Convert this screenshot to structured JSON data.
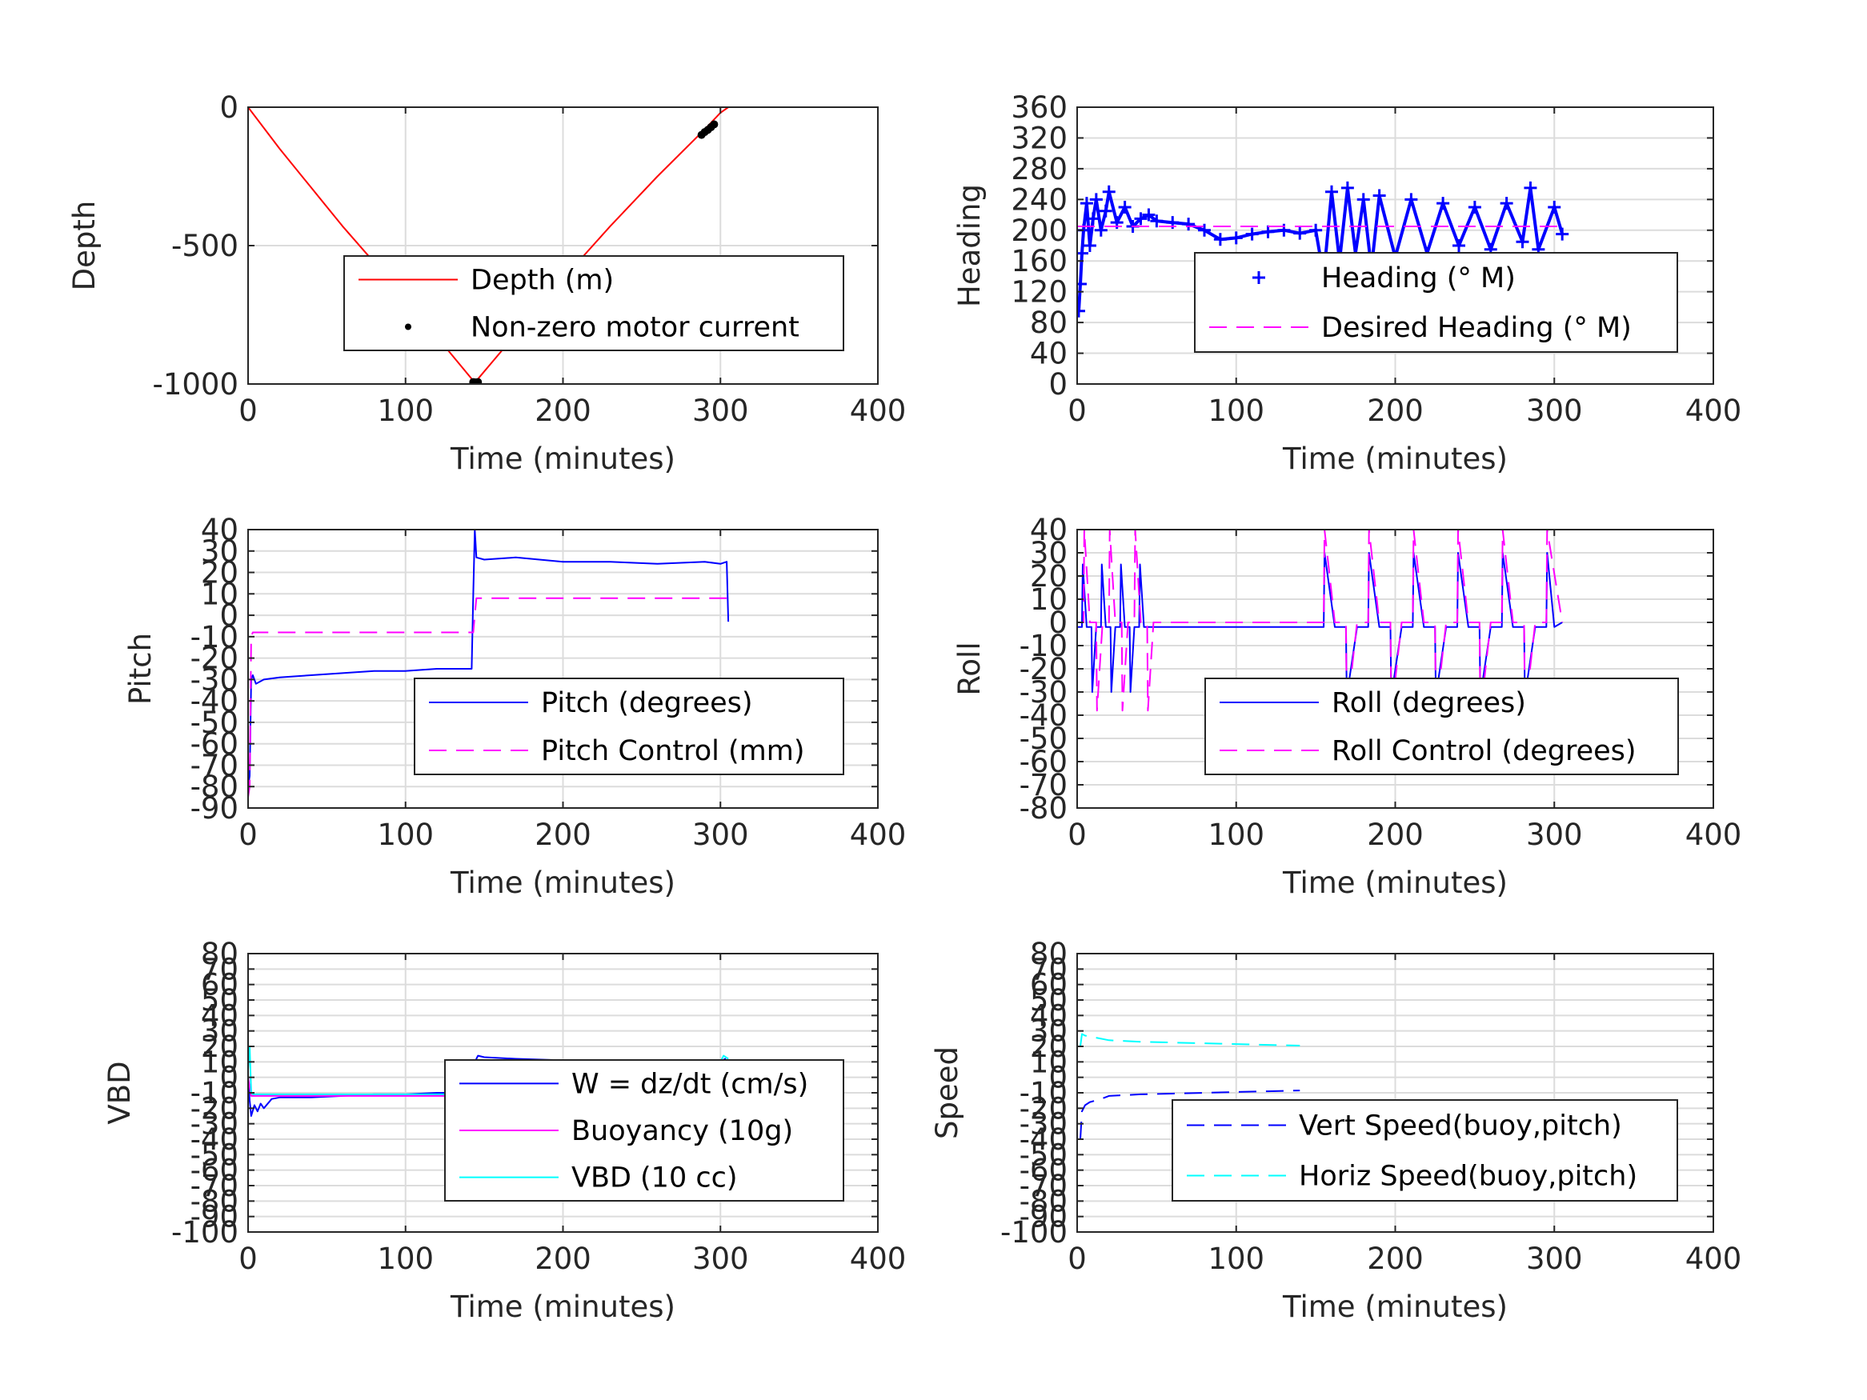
{
  "chart_data": [
    {
      "type": "line",
      "ylabel": "Depth",
      "xlabel": "Time (minutes)",
      "xlim": [
        0,
        400
      ],
      "ylim": [
        -1000,
        0
      ],
      "xticks": [
        "0",
        "100",
        "200",
        "300",
        "400"
      ],
      "yticks": [
        "0",
        "-500",
        "-1000"
      ],
      "ytick_values": [
        0,
        -500,
        -1000
      ],
      "grid": true,
      "legend_position": "center-right",
      "series": [
        {
          "name": "Depth (m)",
          "color": "#ff0000",
          "style": "solid",
          "x": [
            0,
            20,
            40,
            60,
            80,
            100,
            120,
            144,
            170,
            200,
            230,
            260,
            290,
            300,
            305
          ],
          "y": [
            0,
            -150,
            -290,
            -430,
            -560,
            -690,
            -830,
            -995,
            -820,
            -620,
            -430,
            -250,
            -80,
            -20,
            0
          ]
        },
        {
          "name": "Non-zero motor current",
          "color": "#000000",
          "style": "dots",
          "x": [
            143,
            144,
            145,
            146,
            288,
            290,
            292,
            294,
            296
          ],
          "y": [
            -993,
            -994,
            -995,
            -993,
            -100,
            -90,
            -82,
            -72,
            -62
          ]
        }
      ]
    },
    {
      "type": "scatter",
      "ylabel": "Heading",
      "xlabel": "Time (minutes)",
      "xlim": [
        0,
        400
      ],
      "ylim": [
        0,
        360
      ],
      "xticks": [
        "0",
        "100",
        "200",
        "300",
        "400"
      ],
      "yticks": [
        "0",
        "40",
        "80",
        "120",
        "160",
        "200",
        "240",
        "280",
        "320",
        "360"
      ],
      "ytick_values": [
        0,
        40,
        80,
        120,
        160,
        200,
        240,
        280,
        320,
        360
      ],
      "grid": true,
      "legend_position": "center-right",
      "series": [
        {
          "name": "Heading (° M)",
          "color": "#0000ff",
          "style": "plus",
          "x": [
            1,
            2,
            3,
            4,
            6,
            8,
            10,
            12,
            15,
            18,
            20,
            25,
            30,
            35,
            40,
            45,
            50,
            60,
            70,
            80,
            90,
            100,
            110,
            120,
            130,
            140,
            150,
            155,
            160,
            165,
            170,
            175,
            180,
            185,
            190,
            200,
            210,
            220,
            230,
            240,
            250,
            260,
            270,
            280,
            285,
            290,
            300,
            305
          ],
          "y": [
            95,
            130,
            170,
            200,
            235,
            180,
            215,
            240,
            200,
            225,
            250,
            210,
            230,
            205,
            215,
            220,
            212,
            210,
            208,
            200,
            188,
            190,
            195,
            198,
            200,
            196,
            200,
            140,
            250,
            160,
            255,
            170,
            240,
            150,
            245,
            165,
            240,
            170,
            235,
            180,
            230,
            175,
            235,
            185,
            255,
            175,
            230,
            195
          ]
        },
        {
          "name": "Desired Heading (° M)",
          "color": "#ff00ff",
          "style": "dashed",
          "x": [
            0,
            305
          ],
          "y": [
            205,
            205
          ]
        }
      ]
    },
    {
      "type": "line",
      "ylabel": "Pitch",
      "xlabel": "Time (minutes)",
      "xlim": [
        0,
        400
      ],
      "ylim": [
        -90,
        40
      ],
      "xticks": [
        "0",
        "100",
        "200",
        "300",
        "400"
      ],
      "yticks": [
        "40",
        "30",
        "20",
        "10",
        "0",
        "-10",
        "-20",
        "-30",
        "-40",
        "-50",
        "-60",
        "-70",
        "-80",
        "-90"
      ],
      "ytick_values": [
        40,
        30,
        20,
        10,
        0,
        -10,
        -20,
        -30,
        -40,
        -50,
        -60,
        -70,
        -80,
        -90
      ],
      "grid": true,
      "legend_position": "center-right",
      "series": [
        {
          "name": "Pitch (degrees)",
          "color": "#0000ff",
          "style": "solid",
          "x": [
            0,
            1,
            2,
            3,
            5,
            10,
            20,
            40,
            60,
            80,
            100,
            120,
            142,
            143,
            144,
            145,
            150,
            170,
            200,
            230,
            260,
            290,
            300,
            304,
            305
          ],
          "y": [
            -80,
            -75,
            -30,
            -28,
            -32,
            -30,
            -29,
            -28,
            -27,
            -26,
            -26,
            -25,
            -25,
            10,
            40,
            27,
            26,
            27,
            25,
            25,
            24,
            25,
            24,
            25,
            -3
          ]
        },
        {
          "name": "Pitch Control (mm)",
          "color": "#ff00ff",
          "style": "dashed",
          "x": [
            0,
            1,
            2,
            3,
            143,
            144,
            145,
            305
          ],
          "y": [
            -85,
            -80,
            -10,
            -8,
            -8,
            0,
            8,
            8
          ]
        }
      ]
    },
    {
      "type": "line",
      "ylabel": "Roll",
      "xlabel": "Time (minutes)",
      "xlim": [
        0,
        400
      ],
      "ylim": [
        -80,
        40
      ],
      "xticks": [
        "0",
        "100",
        "200",
        "300",
        "400"
      ],
      "yticks": [
        "40",
        "30",
        "20",
        "10",
        "0",
        "-10",
        "-20",
        "-30",
        "-40",
        "-50",
        "-60",
        "-70",
        "-80"
      ],
      "ytick_values": [
        40,
        30,
        20,
        10,
        0,
        -10,
        -20,
        -30,
        -40,
        -50,
        -60,
        -70,
        -80
      ],
      "grid": true,
      "legend_position": "center-right",
      "series": [
        {
          "name": "Roll (degrees)",
          "color": "#0000ff",
          "style": "solid",
          "x": [
            0,
            3,
            3.5,
            6,
            9,
            9.5,
            12,
            15,
            15.5,
            18,
            21,
            21.5,
            24,
            27,
            27.5,
            30,
            33,
            33.5,
            36,
            39,
            39.5,
            42,
            45,
            150,
            155,
            155.5,
            162,
            169,
            169.5,
            176,
            183,
            183.5,
            190,
            197,
            197.5,
            204,
            211,
            211.5,
            218,
            225,
            225.5,
            232,
            239,
            239.5,
            246,
            253,
            253.5,
            260,
            267,
            267.5,
            274,
            281,
            281.5,
            288,
            295,
            295.5,
            300,
            305
          ],
          "y": [
            -2,
            -2,
            25,
            -2,
            -2,
            -30,
            -2,
            -2,
            25,
            -2,
            -2,
            -30,
            -2,
            -2,
            25,
            -2,
            -2,
            -30,
            -2,
            -2,
            25,
            -2,
            -2,
            -2,
            -2,
            30,
            -2,
            -2,
            -32,
            -2,
            -2,
            30,
            -2,
            -2,
            -32,
            -2,
            -2,
            30,
            -2,
            -2,
            -32,
            -2,
            -2,
            30,
            -2,
            -2,
            -32,
            -2,
            -2,
            30,
            -2,
            -2,
            -32,
            -2,
            -2,
            30,
            -2,
            0
          ]
        },
        {
          "name": "Roll Control (degrees)",
          "color": "#ff00ff",
          "style": "dashed",
          "x": [
            0,
            4,
            4.5,
            8,
            12,
            12.5,
            16,
            20,
            20.5,
            24,
            28,
            28.5,
            32,
            36,
            36.5,
            40,
            44,
            44.5,
            48,
            150,
            155,
            155.5,
            162,
            169,
            169.5,
            176,
            183,
            183.5,
            190,
            197,
            197.5,
            204,
            211,
            211.5,
            218,
            225,
            225.5,
            232,
            239,
            239.5,
            246,
            253,
            253.5,
            260,
            267,
            267.5,
            274,
            281,
            281.5,
            288,
            295,
            295.5,
            305
          ],
          "y": [
            0,
            0,
            40,
            0,
            0,
            -38,
            0,
            0,
            40,
            0,
            0,
            -38,
            0,
            0,
            40,
            0,
            0,
            -38,
            0,
            0,
            0,
            40,
            0,
            0,
            -40,
            0,
            0,
            40,
            0,
            0,
            -40,
            0,
            0,
            40,
            0,
            0,
            -40,
            0,
            0,
            40,
            0,
            0,
            -40,
            0,
            0,
            40,
            0,
            0,
            -40,
            0,
            0,
            40,
            0
          ]
        }
      ]
    },
    {
      "type": "line",
      "ylabel": "VBD",
      "xlabel": "Time (minutes)",
      "xlim": [
        0,
        400
      ],
      "ylim": [
        -100,
        80
      ],
      "xticks": [
        "0",
        "100",
        "200",
        "300",
        "400"
      ],
      "yticks": [
        "80",
        "70",
        "60",
        "50",
        "40",
        "30",
        "20",
        "10",
        "0",
        "-10",
        "-20",
        "-30",
        "-40",
        "-50",
        "-60",
        "-70",
        "-80",
        "-90",
        "-100"
      ],
      "ytick_values": [
        80,
        70,
        60,
        50,
        40,
        30,
        20,
        10,
        0,
        -10,
        -20,
        -30,
        -40,
        -50,
        -60,
        -70,
        -80,
        -90,
        -100
      ],
      "grid": true,
      "legend_position": "center-right",
      "series": [
        {
          "name": "W = dz/dt (cm/s)",
          "color": "#0000ff",
          "style": "solid",
          "x": [
            0,
            1,
            2,
            4,
            6,
            8,
            10,
            15,
            20,
            40,
            60,
            80,
            100,
            120,
            143,
            144,
            145,
            146,
            150,
            170,
            200,
            230,
            260,
            290,
            300,
            303,
            305
          ],
          "y": [
            0,
            -15,
            -25,
            -18,
            -22,
            -17,
            -20,
            -14,
            -13,
            -13,
            -12,
            -11,
            -11,
            -10,
            -10,
            5,
            12,
            14,
            13,
            12,
            11,
            11,
            10,
            9,
            10,
            12,
            5
          ]
        },
        {
          "name": "Buoyancy (10g)",
          "color": "#ff00ff",
          "style": "solid",
          "x": [
            0,
            2,
            3,
            143,
            144,
            145,
            305
          ],
          "y": [
            0,
            -12,
            -12,
            -12,
            10,
            11,
            11
          ]
        },
        {
          "name": "VBD (10 cc)",
          "color": "#00ffff",
          "style": "solid",
          "x": [
            0,
            1,
            2,
            3,
            143,
            144,
            145,
            300,
            302,
            305
          ],
          "y": [
            5,
            20,
            -10,
            -11,
            -11,
            9,
            10,
            10,
            14,
            12
          ]
        }
      ]
    },
    {
      "type": "line",
      "ylabel": "Speed",
      "xlabel": "Time (minutes)",
      "xlim": [
        0,
        400
      ],
      "ylim": [
        -100,
        80
      ],
      "xticks": [
        "0",
        "100",
        "200",
        "300",
        "400"
      ],
      "yticks": [
        "80",
        "70",
        "60",
        "50",
        "40",
        "30",
        "20",
        "10",
        "0",
        "-10",
        "-20",
        "-30",
        "-40",
        "-50",
        "-60",
        "-70",
        "-80",
        "-90",
        "-100"
      ],
      "ytick_values": [
        80,
        70,
        60,
        50,
        40,
        30,
        20,
        10,
        0,
        -10,
        -20,
        -30,
        -40,
        -50,
        -60,
        -70,
        -80,
        -90,
        -100
      ],
      "grid": true,
      "legend_position": "lower-right",
      "series": [
        {
          "name": "Vert Speed(buoy,pitch)",
          "color": "#0000ff",
          "style": "dashed",
          "x": [
            2,
            3,
            5,
            8,
            15,
            20,
            40,
            60,
            80,
            100,
            120,
            140
          ],
          "y": [
            -40,
            -22,
            -18,
            -16,
            -14,
            -12,
            -11,
            -10.5,
            -10,
            -9.5,
            -9,
            -8.5
          ]
        },
        {
          "name": "Horiz Speed(buoy,pitch)",
          "color": "#00ffff",
          "style": "dashed",
          "x": [
            2,
            3,
            5,
            10,
            20,
            40,
            60,
            80,
            100,
            120,
            140
          ],
          "y": [
            20,
            28,
            27,
            26,
            24,
            23,
            22.5,
            22,
            21.5,
            21,
            20.5
          ]
        }
      ]
    }
  ]
}
